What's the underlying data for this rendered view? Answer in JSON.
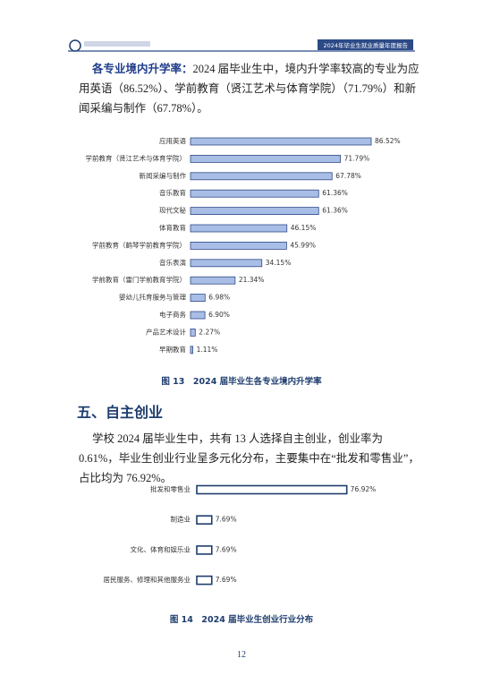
{
  "header": {
    "report_title": "2024年毕业生就业质量年度报告"
  },
  "paragraphs": [
    {
      "lead": "各专业境内升学率：",
      "text": "2024 届毕业生中，境内升学率较高的专业为应用英语（86.52%）、学前教育（贤江艺术与体育学院）（71.79%）和新闻采编与制作（67.78%）。"
    },
    {
      "text": "学校 2024 届毕业生中，共有 13 人选择自主创业，创业率为 0.61%，毕业生创业行业呈多元化分布，主要集中在“批发和零售业”，占比均为 76.92%。"
    }
  ],
  "section_title": "五、自主创业",
  "page_number": "12",
  "chart_data": [
    {
      "type": "bar",
      "orientation": "horizontal",
      "title": "图 13　2024 届毕业生各专业境内升学率",
      "categories": [
        "应用英语",
        "学前教育（贤江艺术与体育学院）",
        "新闻采编与制作",
        "音乐教育",
        "现代文秘",
        "体育教育",
        "学前教育（鹤琴学前教育学院）",
        "音乐表演",
        "学前教育（雷门学前教育学院）",
        "婴幼儿托育服务与管理",
        "电子商务",
        "产品艺术设计",
        "早期教育"
      ],
      "values": [
        86.52,
        71.79,
        67.78,
        61.36,
        61.36,
        46.15,
        45.99,
        34.15,
        21.34,
        6.98,
        6.9,
        2.27,
        1.11
      ],
      "value_labels": [
        "86.52%",
        "71.79%",
        "67.78%",
        "61.36%",
        "61.36%",
        "46.15%",
        "45.99%",
        "34.15%",
        "21.34%",
        "6.98%",
        "6.90%",
        "2.27%",
        "1.11%"
      ],
      "color": "#a9bee6",
      "edge_color": "#2f4a86"
    },
    {
      "type": "bar",
      "orientation": "horizontal",
      "title": "图 14　2024 届毕业生创业行业分布",
      "categories": [
        "批发和零售业",
        "制造业",
        "文化、体育和娱乐业",
        "居民服务、修理和其他服务业"
      ],
      "values": [
        76.92,
        7.69,
        7.69,
        7.69
      ],
      "value_labels": [
        "76.92%",
        "7.69%",
        "7.69%",
        "7.69%"
      ],
      "color": "#ffffff",
      "edge_color": "#1f3d6e"
    }
  ]
}
